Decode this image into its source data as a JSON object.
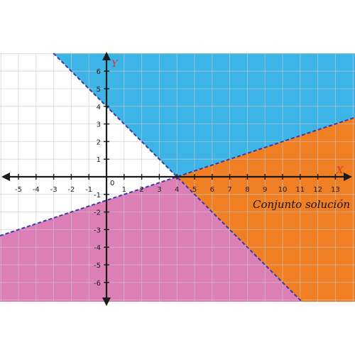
{
  "diagram": {
    "x_axis_label": "X",
    "y_axis_label": "Y",
    "origin_label": "0",
    "solution_label": "Conjunto solución",
    "x_range": [
      -6,
      14
    ],
    "y_range": [
      -7,
      7
    ],
    "x_ticks": [
      -5,
      -4,
      -3,
      -2,
      -1,
      1,
      2,
      3,
      4,
      5,
      6,
      7,
      8,
      9,
      10,
      11,
      12,
      13
    ],
    "y_ticks": [
      6,
      5,
      4,
      3,
      2,
      1,
      -1,
      -2,
      -3,
      -4,
      -5,
      -6
    ],
    "lines": [
      {
        "name": "descending",
        "slope": -1,
        "intercept": 4,
        "style": "dashed",
        "color": "#3a3aa8"
      },
      {
        "name": "ascending",
        "slope": 0.333333,
        "intercept": -1.333333,
        "style": "dashed",
        "color": "#3a3aa8"
      }
    ],
    "regions": [
      {
        "name": "blue-region",
        "description": "above both lines",
        "color": "#3db4e6"
      },
      {
        "name": "orange-region",
        "description": "solution set",
        "color": "#ef7f22"
      },
      {
        "name": "pink-region",
        "description": "below both lines",
        "color": "#dc7fb6"
      }
    ],
    "colors": {
      "grid": "#c8c8c8",
      "axis": "#1a1a1a",
      "axis_name": "#d23030",
      "line": "#3a3aa8"
    }
  }
}
